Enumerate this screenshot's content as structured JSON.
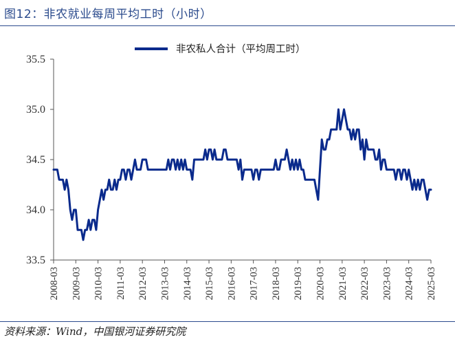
{
  "header": {
    "title": "图12：非农就业每周平均工时（小时）"
  },
  "footer": {
    "source": "资料来源：Wind，中国银河证券研究院"
  },
  "chart_data": {
    "type": "line",
    "title": "",
    "xlabel": "",
    "ylabel": "",
    "ylim": [
      33.5,
      35.5
    ],
    "yticks": [
      "35.5",
      "35.0",
      "34.5",
      "34.0",
      "33.5"
    ],
    "xticks": [
      "2008-03",
      "2009-03",
      "2010-03",
      "2011-03",
      "2012-03",
      "2013-03",
      "2014-03",
      "2015-03",
      "2016-03",
      "2017-03",
      "2018-03",
      "2019-03",
      "2020-03",
      "2021-03",
      "2022-03",
      "2023-03",
      "2024-03",
      "2025-03"
    ],
    "legend_position": "top-center",
    "grid": false,
    "colors": {
      "series": "#0a2a8c",
      "axis": "#555555"
    },
    "series": [
      {
        "name": "非农私人合计（平均周工时）",
        "start": "2008-03",
        "frequency": "monthly",
        "values": [
          34.4,
          34.4,
          34.4,
          34.3,
          34.3,
          34.3,
          34.2,
          34.3,
          34.2,
          34.0,
          33.9,
          34.0,
          34.0,
          33.8,
          33.8,
          33.8,
          33.7,
          33.8,
          33.8,
          33.9,
          33.8,
          33.9,
          33.9,
          33.8,
          34.0,
          34.1,
          34.2,
          34.1,
          34.2,
          34.2,
          34.3,
          34.2,
          34.2,
          34.3,
          34.2,
          34.3,
          34.3,
          34.4,
          34.4,
          34.3,
          34.4,
          34.4,
          34.3,
          34.4,
          34.5,
          34.4,
          34.4,
          34.4,
          34.5,
          34.5,
          34.5,
          34.4,
          34.4,
          34.4,
          34.4,
          34.4,
          34.4,
          34.4,
          34.4,
          34.4,
          34.4,
          34.4,
          34.5,
          34.4,
          34.5,
          34.5,
          34.4,
          34.5,
          34.4,
          34.5,
          34.4,
          34.5,
          34.4,
          34.4,
          34.4,
          34.3,
          34.5,
          34.5,
          34.5,
          34.5,
          34.5,
          34.5,
          34.6,
          34.5,
          34.6,
          34.6,
          34.5,
          34.6,
          34.5,
          34.5,
          34.5,
          34.5,
          34.6,
          34.6,
          34.5,
          34.5,
          34.5,
          34.5,
          34.5,
          34.5,
          34.4,
          34.5,
          34.3,
          34.4,
          34.4,
          34.4,
          34.4,
          34.4,
          34.3,
          34.4,
          34.4,
          34.3,
          34.4,
          34.4,
          34.4,
          34.4,
          34.4,
          34.4,
          34.4,
          34.4,
          34.5,
          34.4,
          34.4,
          34.5,
          34.5,
          34.5,
          34.6,
          34.5,
          34.4,
          34.5,
          34.4,
          34.5,
          34.4,
          34.5,
          34.4,
          34.4,
          34.3,
          34.3,
          34.3,
          34.3,
          34.3,
          34.3,
          34.2,
          34.1,
          34.4,
          34.7,
          34.6,
          34.6,
          34.7,
          34.7,
          34.8,
          34.8,
          34.8,
          34.8,
          35.0,
          34.8,
          34.9,
          35.0,
          34.9,
          34.8,
          34.8,
          34.7,
          34.8,
          34.7,
          34.8,
          34.8,
          34.6,
          34.7,
          34.5,
          34.7,
          34.6,
          34.6,
          34.6,
          34.6,
          34.5,
          34.5,
          34.6,
          34.4,
          34.5,
          34.5,
          34.4,
          34.4,
          34.4,
          34.4,
          34.4,
          34.3,
          34.4,
          34.4,
          34.3,
          34.4,
          34.4,
          34.3,
          34.4,
          34.3,
          34.2,
          34.3,
          34.2,
          34.3,
          34.2,
          34.3,
          34.3,
          34.2,
          34.1,
          34.2,
          34.2
        ]
      }
    ]
  }
}
